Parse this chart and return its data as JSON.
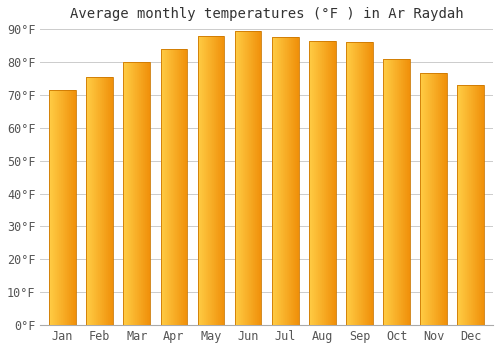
{
  "title": "Average monthly temperatures (°F ) in Ar Raydah",
  "months": [
    "Jan",
    "Feb",
    "Mar",
    "Apr",
    "May",
    "Jun",
    "Jul",
    "Aug",
    "Sep",
    "Oct",
    "Nov",
    "Dec"
  ],
  "values": [
    71.5,
    75.5,
    80.0,
    84.0,
    88.0,
    89.5,
    87.5,
    86.5,
    86.0,
    81.0,
    76.5,
    73.0
  ],
  "bar_color_left": "#FFCC44",
  "bar_color_right": "#F0900A",
  "bar_edge_color": "#CC7700",
  "background_color": "#ffffff",
  "ylim": [
    0,
    90
  ],
  "yticks": [
    0,
    10,
    20,
    30,
    40,
    50,
    60,
    70,
    80,
    90
  ],
  "ytick_labels": [
    "0°F",
    "10°F",
    "20°F",
    "30°F",
    "40°F",
    "50°F",
    "60°F",
    "70°F",
    "80°F",
    "90°F"
  ],
  "title_fontsize": 10,
  "tick_fontsize": 8.5,
  "grid_color": "#cccccc",
  "text_color": "#555555"
}
